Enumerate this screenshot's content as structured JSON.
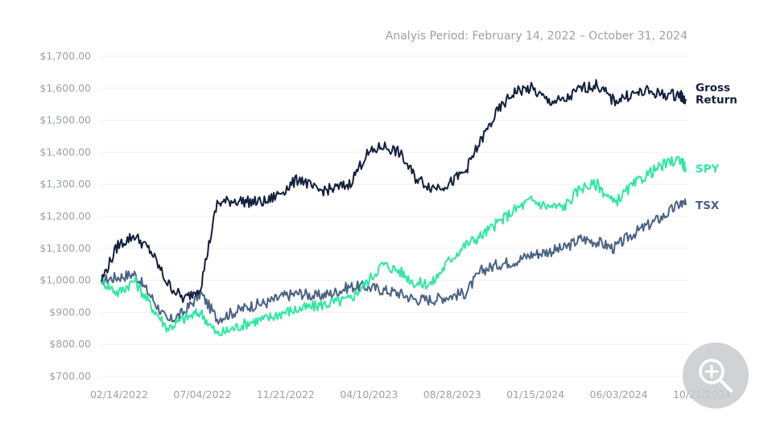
{
  "subtitle": "Analyis Period: February 14, 2022 – October 31, 2024",
  "zoom_button": {
    "icon": "zoom-in-icon"
  },
  "chart_data": {
    "type": "line",
    "title": "",
    "xlabel": "",
    "ylabel": "",
    "ylim": [
      700,
      1700
    ],
    "yticks": [
      "$700.00",
      "$800.00",
      "$900.00",
      "$1,000.00",
      "$1,100.00",
      "$1,200.00",
      "$1,300.00",
      "$1,400.00",
      "$1,500.00",
      "$1,600.00",
      "$1,700.00"
    ],
    "xticks": [
      "02/14/2022",
      "07/04/2022",
      "11/21/2022",
      "04/10/2023",
      "08/28/2023",
      "01/15/2024",
      "06/03/2024",
      "10/21/2024"
    ],
    "grid": "horizontal",
    "legend": "right-end labels",
    "x": [
      "2022-02-14",
      "2022-03-14",
      "2022-04-11",
      "2022-05-09",
      "2022-06-06",
      "2022-07-04",
      "2022-08-01",
      "2022-08-29",
      "2022-09-26",
      "2022-10-24",
      "2022-11-21",
      "2022-12-19",
      "2023-01-16",
      "2023-02-13",
      "2023-03-13",
      "2023-04-10",
      "2023-05-08",
      "2023-06-05",
      "2023-07-03",
      "2023-07-31",
      "2023-08-28",
      "2023-09-25",
      "2023-10-23",
      "2023-11-20",
      "2023-12-18",
      "2024-01-15",
      "2024-02-12",
      "2024-03-11",
      "2024-04-08",
      "2024-05-06",
      "2024-06-03",
      "2024-07-01",
      "2024-07-29",
      "2024-08-26",
      "2024-09-23",
      "2024-10-21",
      "2024-10-31"
    ],
    "series": [
      {
        "name": "Gross Return",
        "color": "#13203d",
        "values": [
          1000,
          1110,
          1140,
          1090,
          990,
          940,
          980,
          1240,
          1250,
          1245,
          1245,
          1280,
          1320,
          1280,
          1285,
          1300,
          1390,
          1420,
          1400,
          1320,
          1290,
          1300,
          1340,
          1440,
          1530,
          1590,
          1600,
          1560,
          1560,
          1600,
          1610,
          1560,
          1580,
          1590,
          1580,
          1580,
          1560
        ]
      },
      {
        "name": "SPY",
        "color": "#2ee8a0",
        "values": [
          1000,
          960,
          1000,
          920,
          850,
          880,
          900,
          830,
          850,
          870,
          880,
          900,
          910,
          920,
          930,
          940,
          990,
          1050,
          1030,
          990,
          990,
          1060,
          1110,
          1140,
          1180,
          1220,
          1250,
          1230,
          1230,
          1290,
          1300,
          1240,
          1290,
          1330,
          1360,
          1380,
          1350
        ]
      },
      {
        "name": "TSX",
        "color": "#4b6285",
        "values": [
          1000,
          1010,
          1020,
          950,
          870,
          900,
          960,
          880,
          900,
          920,
          930,
          950,
          960,
          950,
          960,
          980,
          980,
          970,
          960,
          940,
          940,
          950,
          960,
          1030,
          1050,
          1060,
          1080,
          1090,
          1100,
          1130,
          1120,
          1100,
          1140,
          1170,
          1200,
          1240,
          1235
        ]
      }
    ],
    "end_labels": [
      "Gross\nReturn",
      "SPY",
      "TSX"
    ]
  }
}
